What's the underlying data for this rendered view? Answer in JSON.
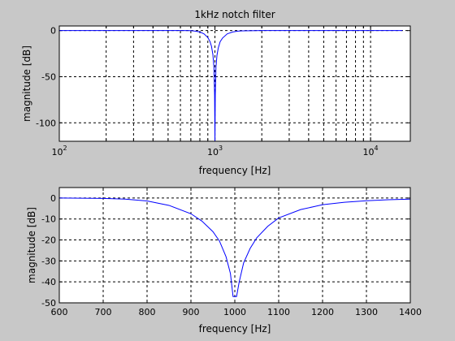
{
  "colors": {
    "background": "#c8c8c8",
    "axes_background": "#ffffff",
    "line": "#0000ff"
  },
  "chart_data": [
    {
      "type": "line",
      "title": "1kHz notch filter",
      "xlabel": "frequency [Hz]",
      "ylabel": "magnitude [dB]",
      "xscale": "log",
      "xlim": [
        100,
        18000
      ],
      "ylim": [
        -120,
        5
      ],
      "yticks": [
        0,
        -50,
        -100
      ],
      "ytick_labels": [
        "0",
        "-50",
        "-100"
      ],
      "xticks_major": [
        {
          "value": 100,
          "base": "10",
          "exp": "2"
        },
        {
          "value": 1000,
          "base": "10",
          "exp": "3"
        },
        {
          "value": 10000,
          "base": "10",
          "exp": "4"
        }
      ],
      "grid": true,
      "series": [
        {
          "color": "#0000ff",
          "x": [
            100,
            300,
            500,
            600,
            700,
            750,
            800,
            850,
            900,
            930,
            950,
            970,
            985,
            995,
            1000,
            1005,
            1015,
            1030,
            1050,
            1080,
            1120,
            1200,
            1300,
            1400,
            1500,
            2000,
            5000,
            10000,
            16000
          ],
          "y": [
            0,
            0,
            0,
            0,
            -0.1,
            -0.6,
            -1.5,
            -3.5,
            -7.5,
            -12,
            -17,
            -26,
            -40,
            -70,
            -120,
            -70,
            -40,
            -27,
            -19,
            -12,
            -8,
            -3.5,
            -1.5,
            -0.6,
            -0.3,
            0,
            0,
            0,
            0
          ]
        }
      ]
    },
    {
      "type": "line",
      "title": "",
      "xlabel": "frequency [Hz]",
      "ylabel": "magnitude [dB]",
      "xscale": "linear",
      "xlim": [
        600,
        1400
      ],
      "ylim": [
        -50,
        5
      ],
      "xticks": [
        600,
        700,
        800,
        900,
        1000,
        1100,
        1200,
        1300,
        1400
      ],
      "xtick_labels": [
        "600",
        "700",
        "800",
        "900",
        "1000",
        "1100",
        "1200",
        "1300",
        "1400"
      ],
      "yticks": [
        0,
        -10,
        -20,
        -30,
        -40,
        -50
      ],
      "ytick_labels": [
        "0",
        "-10",
        "-20",
        "-30",
        "-40",
        "-50"
      ],
      "grid": true,
      "series": [
        {
          "color": "#0000ff",
          "x": [
            600,
            650,
            700,
            750,
            800,
            850,
            900,
            925,
            950,
            965,
            980,
            990,
            996,
            1004,
            1010,
            1020,
            1035,
            1050,
            1075,
            1100,
            1150,
            1200,
            1250,
            1300,
            1350,
            1400
          ],
          "y": [
            0,
            -0.1,
            -0.2,
            -0.5,
            -1.4,
            -3.5,
            -7.5,
            -11,
            -16,
            -20.5,
            -28,
            -36,
            -47,
            -47,
            -40,
            -31,
            -24,
            -19,
            -13.5,
            -9.5,
            -5.5,
            -3.2,
            -2,
            -1.3,
            -0.8,
            -0.5
          ]
        }
      ]
    }
  ]
}
